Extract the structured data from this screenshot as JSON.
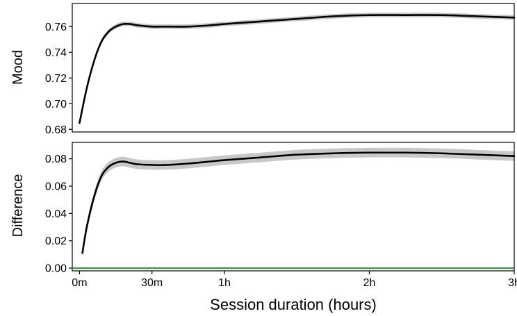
{
  "chart_data": [
    {
      "type": "line",
      "title": "",
      "xlabel": "",
      "ylabel": "Mood",
      "xlim": [
        -0.05,
        3.0
      ],
      "ylim": [
        0.678,
        0.778
      ],
      "yticks": [
        0.68,
        0.7,
        0.72,
        0.74,
        0.76
      ],
      "ytick_labels": [
        "0.68",
        "0.70",
        "0.72",
        "0.74",
        "0.76"
      ],
      "grid": false,
      "colors": {
        "line": "#000000",
        "band": "#c8c8c8"
      },
      "series": [
        {
          "x": [
            0,
            0.05,
            0.1,
            0.15,
            0.2,
            0.25,
            0.3,
            0.35,
            0.4,
            0.5,
            0.6,
            0.75,
            0.9,
            1.0,
            1.25,
            1.5,
            1.75,
            2.0,
            2.25,
            2.5,
            2.75,
            3.0
          ],
          "y": [
            0.685,
            0.712,
            0.733,
            0.748,
            0.756,
            0.76,
            0.762,
            0.762,
            0.761,
            0.76,
            0.76,
            0.76,
            0.761,
            0.762,
            0.764,
            0.766,
            0.768,
            0.769,
            0.769,
            0.769,
            0.768,
            0.767
          ],
          "band_halfwidth": 0.0018
        }
      ]
    },
    {
      "type": "line",
      "title": "",
      "xlabel": "Session duration (hours)",
      "ylabel": "Difference",
      "xlim": [
        -0.05,
        3.0
      ],
      "ylim": [
        -0.002,
        0.092
      ],
      "xticks": [
        0,
        0.5,
        1,
        2,
        3
      ],
      "xtick_labels": [
        "0m",
        "30m",
        "1h",
        "2h",
        "3h"
      ],
      "yticks": [
        0.0,
        0.02,
        0.04,
        0.06,
        0.08
      ],
      "ytick_labels": [
        "0.00",
        "0.02",
        "0.04",
        "0.06",
        "0.08"
      ],
      "grid": false,
      "reference_line": {
        "y": 0.0,
        "color": "#3a9a4a"
      },
      "colors": {
        "line": "#000000",
        "band": "#c8c8c8"
      },
      "series": [
        {
          "x": [
            0.02,
            0.05,
            0.1,
            0.15,
            0.2,
            0.25,
            0.3,
            0.35,
            0.4,
            0.5,
            0.6,
            0.75,
            0.9,
            1.0,
            1.25,
            1.5,
            1.75,
            2.0,
            2.25,
            2.5,
            2.75,
            3.0
          ],
          "y": [
            0.011,
            0.03,
            0.052,
            0.067,
            0.074,
            0.077,
            0.078,
            0.077,
            0.076,
            0.0755,
            0.0755,
            0.0765,
            0.078,
            0.079,
            0.081,
            0.083,
            0.084,
            0.0845,
            0.0845,
            0.084,
            0.083,
            0.082
          ],
          "band_halfwidth": 0.0035
        }
      ]
    }
  ]
}
